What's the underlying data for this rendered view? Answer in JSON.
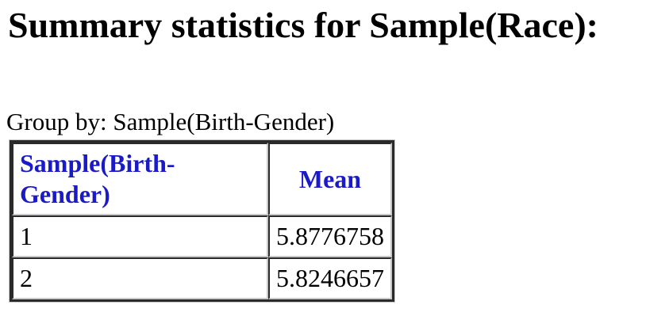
{
  "page": {
    "title": "Summary statistics for Sample(Race):",
    "group_by_label": "Group by: Sample(Birth-Gender)"
  },
  "table": {
    "columns": [
      "Sample(Birth-Gender)",
      "Mean"
    ],
    "rows": [
      [
        "1",
        "5.8776758"
      ],
      [
        "2",
        "5.8246657"
      ]
    ]
  },
  "colors": {
    "header_text": "#1a1ac8",
    "body_text": "#000000",
    "border_dark": "#2a2a2a",
    "border_light": "#c9c9c9",
    "background": "#ffffff"
  }
}
